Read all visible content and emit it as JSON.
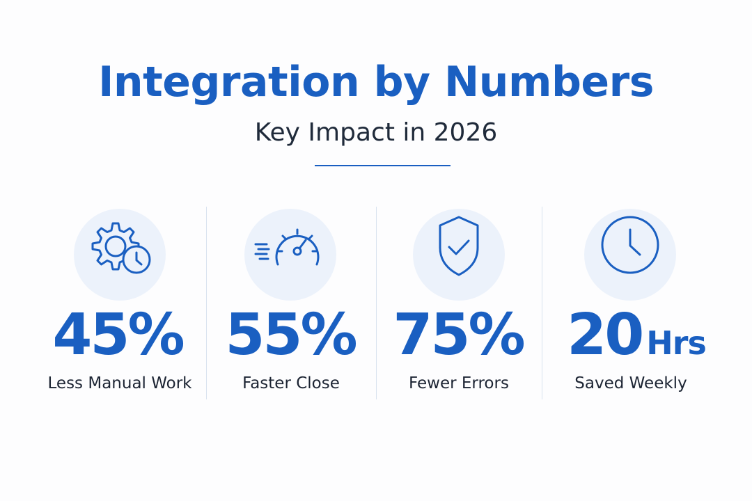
{
  "header": {
    "title": "Integration by Numbers",
    "subtitle": "Key Impact in 2026"
  },
  "stats": [
    {
      "value": "45%",
      "unit": "",
      "label": "Less Manual Work",
      "icon": "gear-clock-icon"
    },
    {
      "value": "55%",
      "unit": "",
      "label": "Faster Close",
      "icon": "speedometer-icon"
    },
    {
      "value": "75%",
      "unit": "",
      "label": "Fewer Errors",
      "icon": "shield-check-icon"
    },
    {
      "value": "20",
      "unit": "Hrs",
      "label": "Saved Weekly",
      "icon": "clock-icon"
    }
  ],
  "colors": {
    "accent": "#1a5fc1",
    "text": "#1c2433",
    "icon_bg": "#ecf2fb",
    "divider": "#d8e2ef"
  }
}
